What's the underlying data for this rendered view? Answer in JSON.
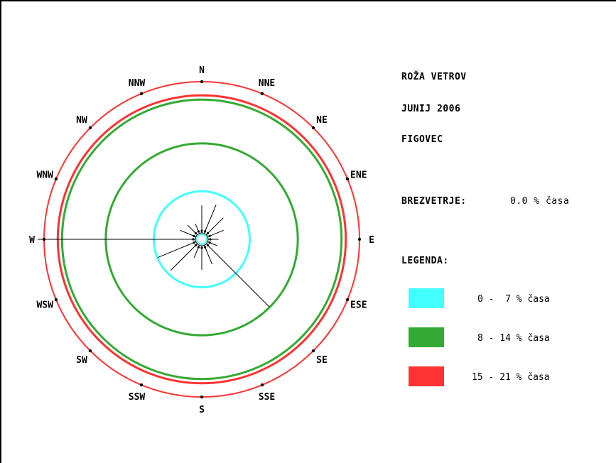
{
  "chart_data": {
    "type": "wind-rose",
    "title": [
      "ROŽA VETROV",
      "JUNIJ 2006",
      "FIGOVEC"
    ],
    "calm_label": "BREZVETRJE:",
    "calm_value": "0.0 % časa",
    "legend_title": "LEGENDA:",
    "legend": [
      {
        "range": "0 -  7 % časa",
        "color": "#44ffff"
      },
      {
        "range": "8 - 14 % časa",
        "color": "#33aa33"
      },
      {
        "range": "15 - 21 % časa",
        "color": "#ff3333"
      }
    ],
    "rings": [
      {
        "value": 7,
        "color": "#44ffff"
      },
      {
        "value": 14,
        "color": "#33aa33"
      },
      {
        "value": 21,
        "color": "#ff3333"
      }
    ],
    "max": 21,
    "directions": [
      "N",
      "NNE",
      "NE",
      "ENE",
      "E",
      "ESE",
      "SE",
      "SSE",
      "S",
      "SSW",
      "SW",
      "WSW",
      "W",
      "WNW",
      "NW",
      "NNW"
    ],
    "values": [
      4,
      4.5,
      3.5,
      2.5,
      1.5,
      1.5,
      13,
      3,
      3.5,
      2,
      5.5,
      6,
      23,
      2.5,
      2,
      1.5
    ]
  }
}
